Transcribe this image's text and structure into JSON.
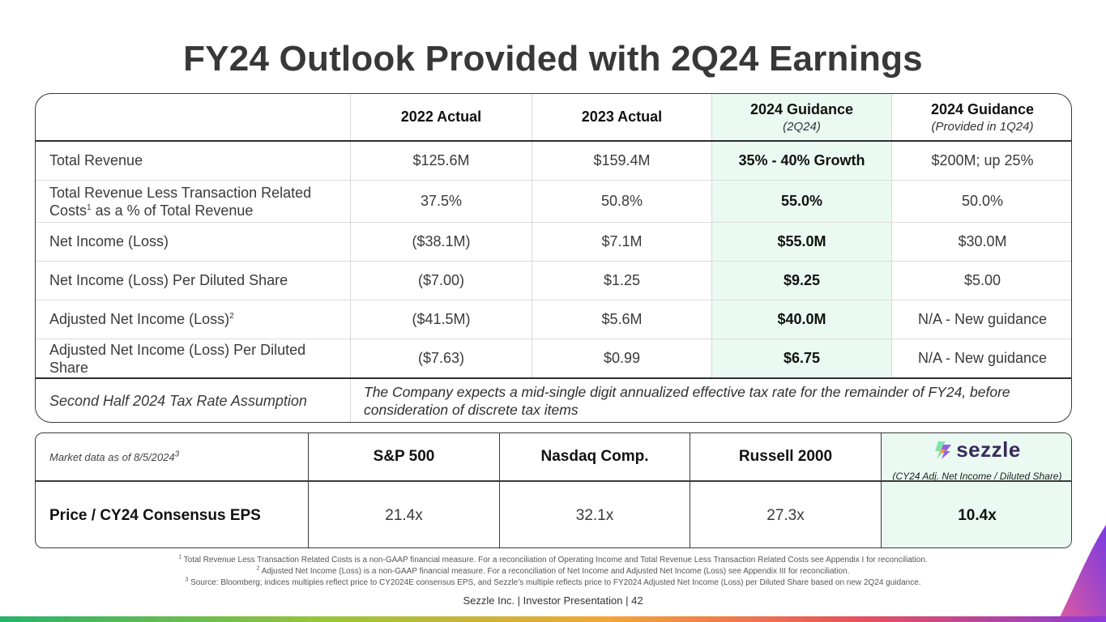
{
  "title": "FY24 Outlook Provided with 2Q24 Earnings",
  "main_table": {
    "headers": [
      {
        "main": "",
        "sub": ""
      },
      {
        "main": "2022 Actual",
        "sub": ""
      },
      {
        "main": "2023 Actual",
        "sub": ""
      },
      {
        "main": "2024 Guidance",
        "sub": "(2Q24)"
      },
      {
        "main": "2024 Guidance",
        "sub": "(Provided in 1Q24)"
      }
    ],
    "rows": [
      {
        "label": "Total Revenue",
        "sup": "",
        "v2022": "$125.6M",
        "v2023": "$159.4M",
        "g2q24": "35% - 40% Growth",
        "g1q24": "$200M; up 25%"
      },
      {
        "label_line1": "Total Revenue Less Transaction Related",
        "label_line2a": "Costs",
        "sup": "1",
        "label_line2b": " as a % of Total Revenue",
        "v2022": "37.5%",
        "v2023": "50.8%",
        "g2q24": "55.0%",
        "g1q24": "50.0%"
      },
      {
        "label": "Net Income (Loss)",
        "sup": "",
        "v2022": "($38.1M)",
        "v2023": "$7.1M",
        "g2q24": "$55.0M",
        "g1q24": "$30.0M"
      },
      {
        "label": "Net Income (Loss) Per Diluted Share",
        "sup": "",
        "v2022": "($7.00)",
        "v2023": "$1.25",
        "g2q24": "$9.25",
        "g1q24": "$5.00"
      },
      {
        "label": "Adjusted Net Income (Loss)",
        "sup": "2",
        "v2022": "($41.5M)",
        "v2023": "$5.6M",
        "g2q24": "$40.0M",
        "g1q24": "N/A - New guidance"
      },
      {
        "label_line1": "Adjusted Net Income (Loss) Per Diluted",
        "label_line2": "Share",
        "v2022": "($7.63)",
        "v2023": "$0.99",
        "g2q24": "$6.75",
        "g1q24": "N/A - New guidance"
      }
    ],
    "tax_row": {
      "label": "Second Half 2024 Tax Rate Assumption",
      "text": "The Company expects a mid-single digit annualized effective tax rate for the remainder of FY24, before consideration of discrete tax items"
    }
  },
  "market_table": {
    "as_of_label": "Market data as of 8/5/2024",
    "as_of_sup": "3",
    "columns": [
      "S&P 500",
      "Nasdaq Comp.",
      "Russell 2000"
    ],
    "logo_text": "sezzle",
    "logo_sub": "(CY24 Adj. Net Income / Diluted Share)",
    "row_label": "Price / CY24 Consensus EPS",
    "values": [
      "21.4x",
      "32.1x",
      "27.3x"
    ],
    "sezzle_value": "10.4x"
  },
  "footnotes": [
    {
      "sup": "1",
      "text": "Total Revenue Less Transaction Related Costs is a non-GAAP financial measure. For a reconciliation of Operating Income and Total Revenue Less Transaction Related Costs see Appendix I for reconciliation."
    },
    {
      "sup": "2",
      "text": "Adjusted Net Income (Loss) is a non-GAAP financial measure. For a reconciliation of Net Income and Adjusted Net Income (Loss) see Appendix III for reconciliation."
    },
    {
      "sup": "3",
      "text": "Source: Bloomberg; indices multiples reflect price to CY2024E consensus EPS, and Sezzle’s multiple reflects price to FY2024 Adjusted Net Income (Loss) per Diluted Share based on new 2Q24 guidance."
    }
  ],
  "footer": "Sezzle Inc. | Investor Presentation | 42",
  "colors": {
    "highlight": "#eafaf3",
    "title": "#383838",
    "logo_purple": "#3a2a5c"
  }
}
